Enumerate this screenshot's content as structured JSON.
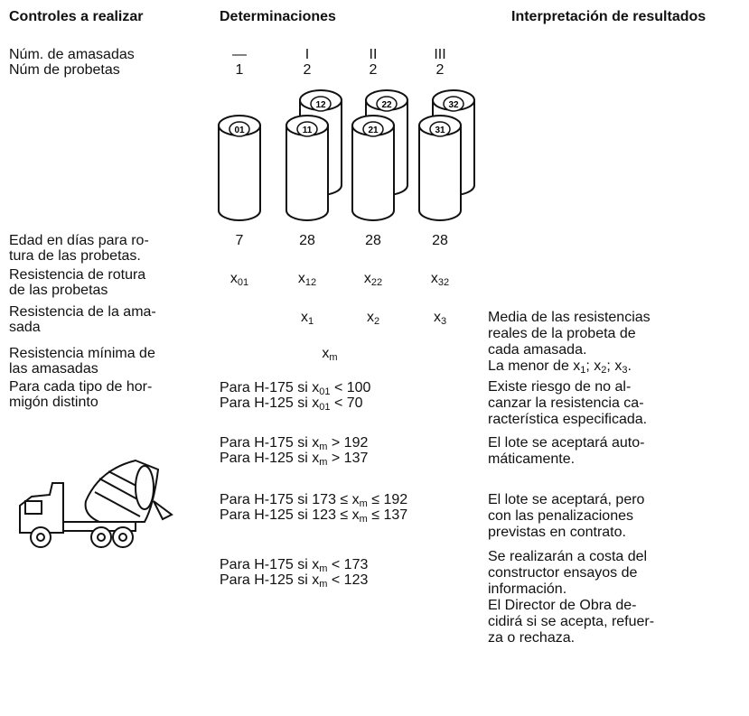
{
  "headers": {
    "controls": "Controles a realizar",
    "determinations": "Determinaciones",
    "interpretation": "Interpretación de resultados"
  },
  "controls": [
    [
      "Núm. de amasadas"
    ],
    [
      "Núm de probetas"
    ],
    [
      "Edad en días para ro-",
      "tura de las probetas."
    ],
    [
      "Resistencia de rotura",
      "de las probetas"
    ],
    [
      "Resistencia de la ama-",
      "sada"
    ],
    [
      "Resistencia mínima de",
      "las amasadas"
    ],
    [
      "Para cada tipo de hor-",
      "migón distinto"
    ]
  ],
  "batches": [
    "—",
    "I",
    "II",
    "III"
  ],
  "specimens": [
    "1",
    "2",
    "2",
    "2"
  ],
  "cylinders": [
    "01",
    "11",
    "12",
    "21",
    "22",
    "31",
    "32"
  ],
  "ages": [
    "7",
    "28",
    "28",
    "28"
  ],
  "strengths": [
    [
      "x",
      {
        "sub": "01"
      }
    ],
    [
      "x",
      {
        "sub": "12"
      }
    ],
    [
      "x",
      {
        "sub": "22"
      }
    ],
    [
      "x",
      {
        "sub": "32"
      }
    ]
  ],
  "batch_strengths": [
    [
      "x",
      {
        "sub": "1"
      }
    ],
    [
      "x",
      {
        "sub": "2"
      }
    ],
    [
      "x",
      {
        "sub": "3"
      }
    ]
  ],
  "minimum": [
    "x",
    {
      "sub": "m"
    }
  ],
  "conditions": [
    [
      [
        "Para H-175 si x",
        {
          "sub": "01"
        },
        " < 100"
      ],
      [
        "Para H-125 si x",
        {
          "sub": "01"
        },
        " < 70"
      ]
    ],
    [
      [
        "Para H-175 si x",
        {
          "sub": "m"
        },
        " > 192"
      ],
      [
        "Para H-125 si x",
        {
          "sub": "m"
        },
        " > 137"
      ]
    ],
    [
      [
        "Para H-175 si 173 ≤ x",
        {
          "sub": "m"
        },
        " ≤ 192"
      ],
      [
        "Para H-125 si 123 ≤ x",
        {
          "sub": "m"
        },
        " ≤ 137"
      ]
    ],
    [
      [
        "Para H-175 si x",
        {
          "sub": "m"
        },
        " < 173"
      ],
      [
        "Para H-125 si x",
        {
          "sub": "m"
        },
        " < 123"
      ]
    ]
  ],
  "interpretations": [
    [
      "Media de las resistencias",
      "reales de la probeta de",
      "cada amasada.",
      [
        "La menor de x",
        {
          "sub": "1"
        },
        "; x",
        {
          "sub": "2"
        },
        "; x",
        {
          "sub": "3"
        },
        "."
      ]
    ],
    [
      "Existe riesgo de no al-",
      "canzar la resistencia ca-",
      "racterística especificada."
    ],
    [
      "El lote se aceptará auto-",
      "máticamente."
    ],
    [
      "El lote se aceptará, pero",
      "con las penalizaciones",
      "previstas en contrato."
    ],
    [
      "Se realizarán a costa del",
      "constructor ensayos de",
      "información.",
      "El Director de Obra de-",
      "cidirá si se acepta, refuer-",
      "za o rechaza."
    ]
  ]
}
